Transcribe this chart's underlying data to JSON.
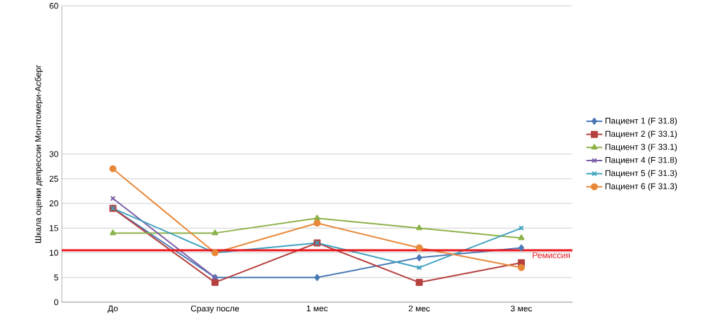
{
  "chart_data": {
    "type": "line",
    "ylabel": "Шкала оценки депрессии Монтгомери-Асберг",
    "categories": [
      "До",
      "Сразу после",
      "1 мес",
      "2 мес",
      "3 мес"
    ],
    "series": [
      {
        "name": "Пациент 1 (F 31.8)",
        "color": "#4a7ab8",
        "marker": "diamond",
        "values": [
          19,
          5,
          5,
          9,
          11
        ]
      },
      {
        "name": "Пациент 2 (F 33.1)",
        "color": "#b5413f",
        "marker": "square",
        "values": [
          19,
          4,
          12,
          4,
          8
        ]
      },
      {
        "name": "Пациент 3 (F 33.1)",
        "color": "#8db24a",
        "marker": "triangle",
        "values": [
          14,
          14,
          17,
          15,
          13
        ]
      },
      {
        "name": "Пациент 4 (F 31.8)",
        "color": "#7b5ea7",
        "marker": "cross",
        "values": [
          21,
          5,
          null,
          null,
          null
        ]
      },
      {
        "name": "Пациент 5 (F 31.3)",
        "color": "#3fa2c0",
        "marker": "cross",
        "values": [
          19,
          10,
          12,
          7,
          15
        ]
      },
      {
        "name": "Пациент 6 (F 31.3)",
        "color": "#e8893a",
        "marker": "circle",
        "values": [
          27,
          10,
          16,
          11,
          7
        ]
      }
    ],
    "ylim": [
      0,
      60
    ],
    "yticks": [
      0,
      5,
      10,
      15,
      20,
      25,
      30,
      60
    ],
    "grid": "y",
    "legend": "right",
    "ref_lines": [
      {
        "axis": "y",
        "value": 10.5,
        "label": "Ремиссия",
        "color": "#e8141c"
      }
    ]
  }
}
